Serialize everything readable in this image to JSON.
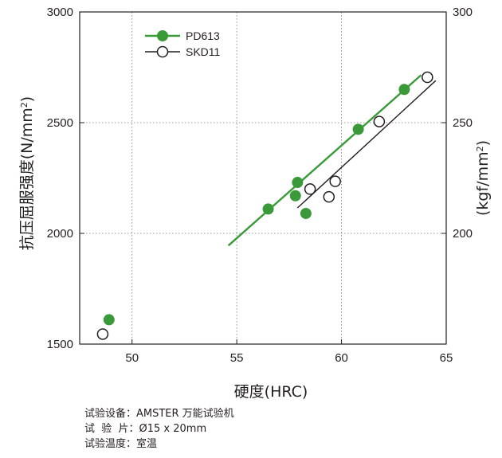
{
  "chart_data": {
    "type": "scatter",
    "xlabel": "硬度(HRC)",
    "ylabel": "抗压屈服强度(N/mm",
    "ylabel_sup": "2",
    "ylabel_end": ")",
    "y2label": "(kgf/mm",
    "y2label_sup": "2",
    "y2label_end": ")",
    "xlim": [
      47.5,
      65
    ],
    "ylim": [
      1500,
      3000
    ],
    "y2lim": [
      150,
      300
    ],
    "xticks": [
      "50",
      "55",
      "60",
      "65"
    ],
    "yticks": [
      "1500",
      "2000",
      "2500",
      "3000"
    ],
    "y2ticks": [
      "200",
      "250",
      "300"
    ],
    "grid": true,
    "legend_position": "top-left",
    "series": [
      {
        "name": "PD613",
        "color": "#3a9a3a",
        "marker": "filled-circle",
        "points": [
          {
            "x": 48.9,
            "y": 1610
          },
          {
            "x": 56.5,
            "y": 2110
          },
          {
            "x": 57.8,
            "y": 2170
          },
          {
            "x": 57.9,
            "y": 2230
          },
          {
            "x": 58.3,
            "y": 2090
          },
          {
            "x": 60.8,
            "y": 2470
          },
          {
            "x": 63.0,
            "y": 2650
          }
        ],
        "trend": {
          "x": [
            54.6,
            63.8
          ],
          "y": [
            1945,
            2715
          ]
        }
      },
      {
        "name": "SKD11",
        "color": "#231f20",
        "marker": "open-circle",
        "points": [
          {
            "x": 48.6,
            "y": 1545
          },
          {
            "x": 58.5,
            "y": 2200
          },
          {
            "x": 59.4,
            "y": 2165
          },
          {
            "x": 59.7,
            "y": 2235
          },
          {
            "x": 61.8,
            "y": 2505
          },
          {
            "x": 64.1,
            "y": 2705
          }
        ],
        "trend": {
          "x": [
            57.9,
            64.5
          ],
          "y": [
            2115,
            2690
          ]
        }
      }
    ]
  },
  "notes": [
    "试验设备：AMSTER 万能试验机",
    "试  验  片：Ø15 x 20mm",
    "试验温度：室温"
  ]
}
